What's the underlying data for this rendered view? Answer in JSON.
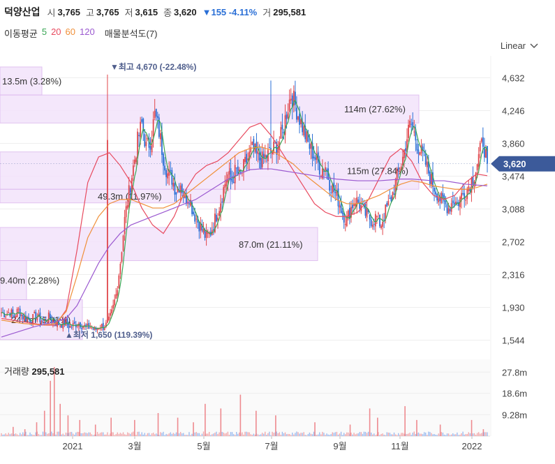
{
  "header": {
    "name": "덕양산업",
    "open_label": "시",
    "open": "3,765",
    "high_label": "고",
    "high": "3,765",
    "low_label": "저",
    "low": "3,615",
    "close_label": "종",
    "close": "3,620",
    "change": "▼155 -4.11%",
    "volume_label": "거",
    "volume": "295,581"
  },
  "ma_legend": {
    "label": "이동평균",
    "p5": "5",
    "p20": "20",
    "p60": "60",
    "p120": "120",
    "vp": "매물분석도(7)"
  },
  "scale_mode": "Linear",
  "colors": {
    "up": "#e0474c",
    "down": "#2a6fd6",
    "ma5": "#3aa655",
    "ma20": "#e84a5f",
    "ma60": "#f0903a",
    "ma120": "#9b59d0",
    "vp_fill": "#f3e3fb",
    "vp_stroke": "#dcb8ee",
    "price_tag": "#3c5a9a"
  },
  "chart_data": {
    "type": "candlestick",
    "y_ticks": [
      "4,632",
      "4,246",
      "3,860",
      "3,474",
      "3,088",
      "2,702",
      "2,316",
      "1,930",
      "1,544"
    ],
    "ylim": [
      1400,
      4850
    ],
    "x_ticks": [
      "2021",
      "3월",
      "5월",
      "7월",
      "9월",
      "11월",
      "2022"
    ],
    "current_price_label": "3,620",
    "annotations": {
      "high": "▼최고 4,670 (-22.48%)",
      "low": "▲최저 1,650 (119.39%)"
    },
    "volume_profile": [
      {
        "lo": 4430,
        "hi": 4760,
        "label": "13.5m (3.28%)",
        "vol_pct": 3.28
      },
      {
        "lo": 4100,
        "hi": 4430,
        "label": "114m (27.62%)",
        "vol_pct": 27.62
      },
      {
        "lo": 3320,
        "hi": 3760,
        "label": "115m (27.84%)",
        "vol_pct": 27.84
      },
      {
        "lo": 3160,
        "hi": 3320,
        "label": "49.3m (11.97%)",
        "vol_pct": 11.97
      },
      {
        "lo": 2480,
        "hi": 2870,
        "label": "87.0m (21.11%)",
        "vol_pct": 21.11
      },
      {
        "lo": 2020,
        "hi": 2480,
        "label": "9.40m (2.28%)",
        "vol_pct": 2.28
      },
      {
        "lo": 1550,
        "hi": 2020,
        "label": "24.4m (5.91%)",
        "vol_pct": 5.91
      }
    ],
    "ohlc_anchors": [
      1870,
      1850,
      1880,
      1830,
      1900,
      1820,
      1800,
      1780,
      1840,
      1790,
      1760,
      1820,
      1780,
      1740,
      1730,
      1760,
      1700,
      1720,
      1750,
      1720,
      1690,
      1700,
      1660,
      1720,
      1700,
      1740,
      1880,
      2100,
      2500,
      3000,
      3300,
      3600,
      3900,
      4100,
      3800,
      3900,
      4200,
      4000,
      3700,
      3500,
      3450,
      3300,
      3400,
      3200,
      3250,
      3050,
      2950,
      2850,
      2750,
      2800,
      2950,
      3100,
      3300,
      3500,
      3400,
      3550,
      3450,
      3600,
      3700,
      3800,
      3700,
      3650,
      3700,
      3750,
      3800,
      3850,
      4000,
      4250,
      4450,
      4300,
      4150,
      4000,
      3850,
      3750,
      3650,
      3550,
      3600,
      3400,
      3300,
      3200,
      3050,
      2950,
      3100,
      3200,
      3150,
      3050,
      3000,
      2950,
      3000,
      2900,
      3050,
      3150,
      3300,
      3500,
      3650,
      3900,
      4100,
      3950,
      3800,
      3700,
      3550,
      3400,
      3300,
      3200,
      3150,
      3100,
      3200,
      3150,
      3250,
      3300,
      3400,
      3500,
      3700,
      3900,
      3620
    ],
    "ma_series": {
      "ma5": "closely tracks price",
      "ma20": [
        1800,
        1780,
        1760,
        1740,
        1720,
        1720,
        1900,
        2600,
        3400,
        3700,
        3750,
        3600,
        3400,
        3100,
        2900,
        2800,
        3000,
        3300,
        3500,
        3600,
        3650,
        3750,
        3900,
        4050,
        4100,
        3950,
        3750,
        3550,
        3350,
        3150,
        3050,
        3000,
        3000,
        3050,
        3200,
        3450,
        3700,
        3800,
        3650,
        3400,
        3250,
        3200,
        3250,
        3400,
        3500,
        3480
      ],
      "ma60": [
        1780,
        1760,
        1740,
        1730,
        1720,
        1740,
        1880,
        2300,
        2750,
        3000,
        3150,
        3200,
        3200,
        3150,
        3100,
        3100,
        3150,
        3250,
        3350,
        3450,
        3550,
        3650,
        3750,
        3800,
        3820,
        3780,
        3700,
        3620,
        3500,
        3400,
        3300,
        3200,
        3150,
        3150,
        3200,
        3250,
        3320,
        3380,
        3420,
        3400,
        3360,
        3340,
        3320,
        3320,
        3340,
        3380
      ],
      "ma120": [
        1580,
        1620,
        1660,
        1700,
        1730,
        1760,
        1800,
        1950,
        2200,
        2450,
        2650,
        2800,
        2900,
        2950,
        3000,
        3050,
        3100,
        3150,
        3200,
        3280,
        3360,
        3440,
        3500,
        3550,
        3560,
        3560,
        3540,
        3520,
        3500,
        3480,
        3460,
        3440,
        3430,
        3420,
        3420,
        3420,
        3430,
        3440,
        3440,
        3430,
        3420,
        3420,
        3400,
        3380,
        3370,
        3360
      ]
    },
    "volume": {
      "title_label": "거래량",
      "current": "295,581",
      "y_ticks": [
        "27.8m",
        "18.6m",
        "9.28m"
      ],
      "max": 30,
      "spikes": [
        [
          0.3,
          4
        ],
        [
          0.6,
          3
        ],
        [
          0.9,
          6
        ],
        [
          1.1,
          11
        ],
        [
          1.25,
          24
        ],
        [
          1.35,
          30
        ],
        [
          1.5,
          14
        ],
        [
          1.7,
          9
        ],
        [
          2.0,
          7
        ],
        [
          2.4,
          5
        ],
        [
          2.8,
          8
        ],
        [
          3.4,
          7
        ],
        [
          4.0,
          10
        ],
        [
          4.5,
          8
        ],
        [
          4.9,
          6
        ],
        [
          5.2,
          14
        ],
        [
          5.6,
          12
        ],
        [
          6.1,
          18
        ],
        [
          6.5,
          11
        ],
        [
          7.0,
          9
        ],
        [
          8.0,
          6
        ],
        [
          8.9,
          5
        ],
        [
          9.4,
          12
        ],
        [
          9.6,
          8
        ],
        [
          10.3,
          13
        ],
        [
          10.6,
          7
        ],
        [
          11.2,
          5
        ],
        [
          12.0,
          7
        ],
        [
          12.3,
          3
        ]
      ]
    }
  }
}
